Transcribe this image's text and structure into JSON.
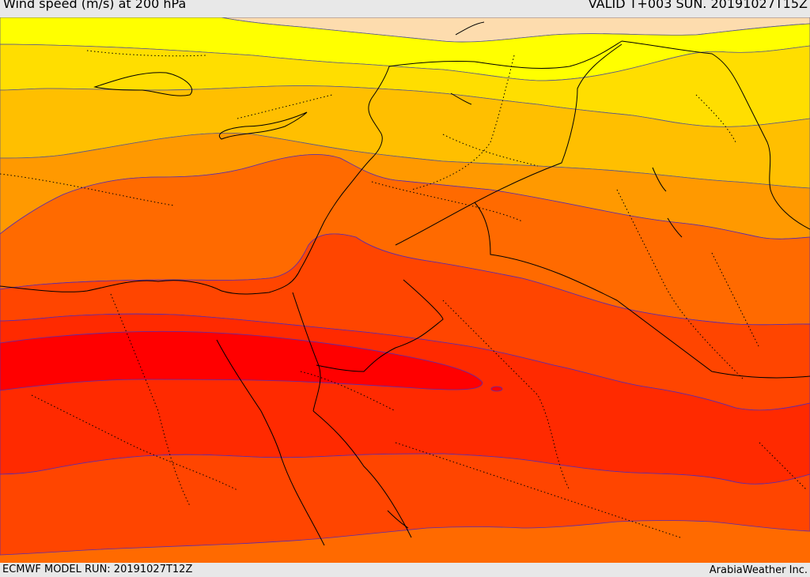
{
  "header": {
    "title": "Wind speed (m/s) at 200 hPa",
    "valid": "VALID T+003 SUN. 20191027T15Z"
  },
  "footer": {
    "model_run": "ECMWF MODEL RUN: 20191027T12Z",
    "credit": "ArabiaWeather Inc."
  },
  "colors": {
    "band_1": "#fddcae",
    "band_2": "#ffff00",
    "band_3": "#ffde00",
    "band_4": "#ffbf00",
    "band_5": "#ff9900",
    "band_6": "#ff6a00",
    "band_7": "#ff4500",
    "band_8": "#ff2a00",
    "band_9": "#ff0000",
    "contour_upper": "#5a5a8a",
    "contour_lower": "#5a2ab0",
    "coastline": "#000000"
  }
}
